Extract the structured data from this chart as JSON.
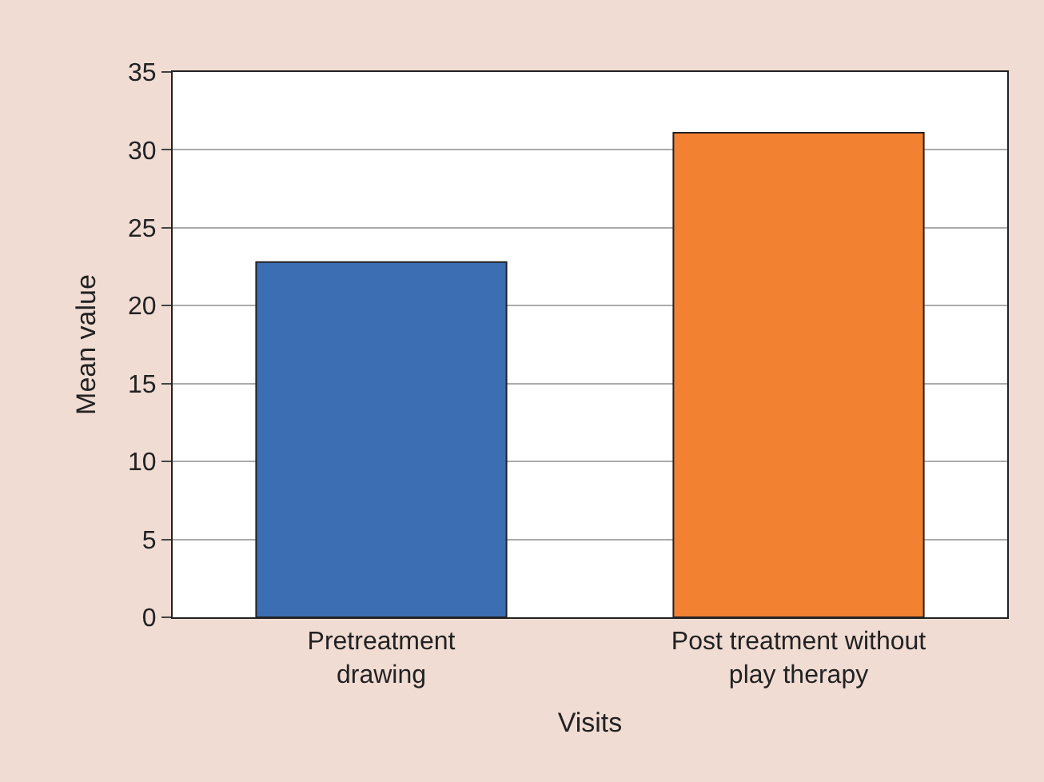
{
  "chart_data": {
    "type": "bar",
    "xlabel": "Visits",
    "ylabel": "Mean value",
    "categories": [
      "Pretreatment\ndrawing",
      "Post treatment without\nplay therapy"
    ],
    "values": [
      22.8,
      31.1
    ],
    "colors": [
      "#3c6eb4",
      "#f38132"
    ],
    "ylim": [
      0,
      35
    ],
    "yticks": [
      0,
      5,
      10,
      15,
      20,
      25,
      30,
      35
    ],
    "grid": "y",
    "legend": false
  }
}
